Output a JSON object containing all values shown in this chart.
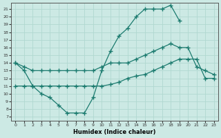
{
  "xlabel": "Humidex (Indice chaleur)",
  "bg_color": "#cce9e4",
  "grid_color": "#b0d8d0",
  "line_color": "#1a7a6e",
  "xlim": [
    -0.5,
    23.5
  ],
  "ylim": [
    6.5,
    21.8
  ],
  "xticks": [
    0,
    1,
    2,
    3,
    4,
    5,
    6,
    7,
    8,
    9,
    10,
    11,
    12,
    13,
    14,
    15,
    16,
    17,
    18,
    19,
    20,
    21,
    22,
    23
  ],
  "yticks": [
    7,
    8,
    9,
    10,
    11,
    12,
    13,
    14,
    15,
    16,
    17,
    18,
    19,
    20,
    21
  ],
  "line1_x": [
    0,
    1,
    2,
    3,
    4,
    5,
    6,
    7,
    8,
    9,
    10,
    11,
    12,
    13,
    14,
    15,
    16,
    17,
    18,
    19
  ],
  "line1_y": [
    14,
    13,
    11,
    10,
    9.5,
    8.5,
    7.5,
    7.5,
    7.5,
    9.5,
    13,
    15.5,
    17.5,
    18.5,
    20,
    21,
    21,
    21,
    21.5,
    19.5
  ],
  "line2_x": [
    0,
    1,
    2,
    3,
    4,
    5,
    6,
    7,
    8,
    9,
    10,
    11,
    12,
    13,
    14,
    15,
    16,
    17,
    18,
    19,
    20,
    21,
    22,
    23
  ],
  "line2_y": [
    14,
    13.5,
    13,
    13,
    13,
    13,
    13,
    13,
    13,
    13,
    13.5,
    14,
    14,
    14,
    14.5,
    15,
    15.5,
    16,
    16.5,
    16,
    16,
    13.5,
    13,
    12.5
  ],
  "line3_x": [
    0,
    1,
    2,
    3,
    4,
    5,
    6,
    7,
    8,
    9,
    10,
    11,
    12,
    13,
    14,
    15,
    16,
    17,
    18,
    19,
    20,
    21,
    22,
    23
  ],
  "line3_y": [
    11,
    11,
    11,
    11,
    11,
    11,
    11,
    11,
    11,
    11,
    11,
    11.2,
    11.5,
    12,
    12.3,
    12.5,
    13,
    13.5,
    14,
    14.5,
    14.5,
    14.5,
    12,
    12
  ]
}
